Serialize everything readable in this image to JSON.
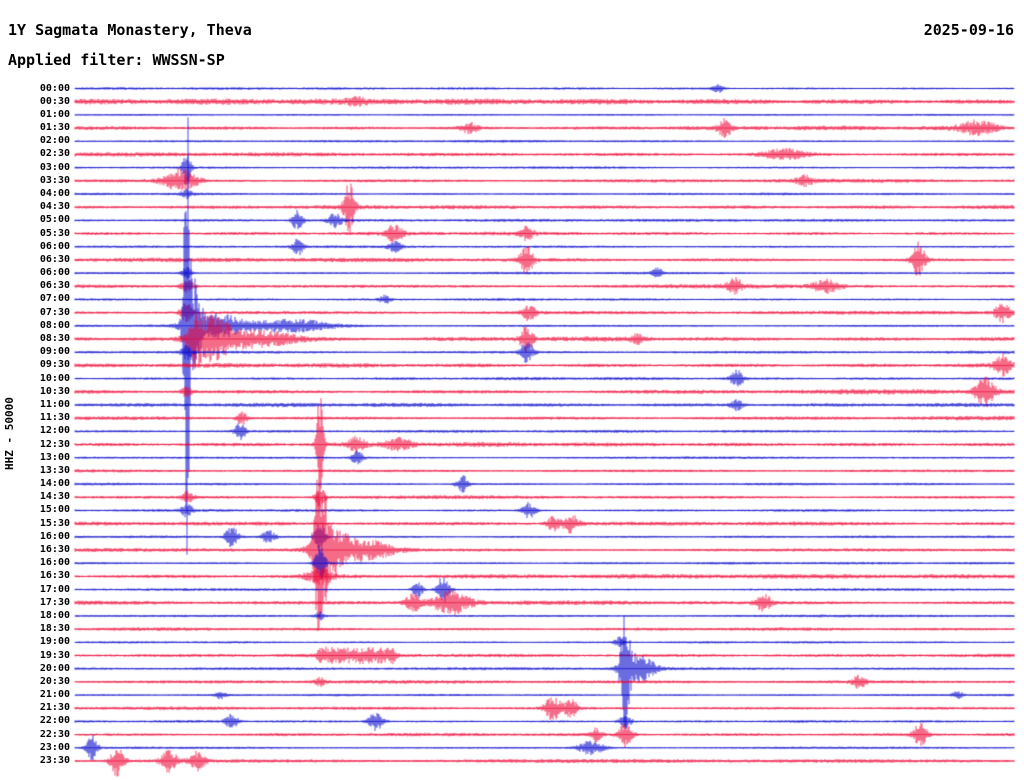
{
  "header": {
    "title": "1Y Sagmata Monastery, Theva",
    "date": "2025-09-16",
    "filter": "Applied filter: WWSSN-SP"
  },
  "axis": {
    "left_scale_label": "HHZ - 50000"
  },
  "chart_data": {
    "type": "line",
    "variant": "helicorder-day-plot",
    "station": "1Y Sagmata Monastery, Theva",
    "date": "2025-09-16",
    "filter": "WWSSN-SP",
    "channel_scale": "HHZ - 50000",
    "minutes_per_row": 30,
    "row_labels": [
      "00:00",
      "00:30",
      "01:00",
      "01:30",
      "02:00",
      "02:30",
      "03:00",
      "03:30",
      "04:00",
      "04:30",
      "05:00",
      "05:30",
      "06:00",
      "06:30",
      "06:00",
      "06:30",
      "07:00",
      "07:30",
      "08:00",
      "08:30",
      "09:00",
      "09:30",
      "10:00",
      "10:30",
      "11:00",
      "11:30",
      "12:00",
      "12:30",
      "13:00",
      "13:30",
      "14:00",
      "14:30",
      "15:00",
      "15:30",
      "16:00",
      "16:30",
      "16:00",
      "16:30",
      "17:00",
      "17:30",
      "18:00",
      "18:30",
      "19:00",
      "19:30",
      "20:00",
      "20:30",
      "21:00",
      "21:30",
      "22:00",
      "22:30",
      "23:00",
      "23:30"
    ],
    "colors": {
      "even_rows": "#0000cc",
      "odd_rows": "#ee0033",
      "text": "#000000",
      "background": "#ffffff"
    },
    "row_noise": [
      1.0,
      2.0,
      0.9,
      1.5,
      0.9,
      1.4,
      1.0,
      1.5,
      1.0,
      1.4,
      1.0,
      1.5,
      1.0,
      1.6,
      1.0,
      1.6,
      1.0,
      1.5,
      1.1,
      1.8,
      1.2,
      1.8,
      1.2,
      1.8,
      1.4,
      1.6,
      1.1,
      1.5,
      1.0,
      1.4,
      1.0,
      1.4,
      1.0,
      1.4,
      1.0,
      1.5,
      1.0,
      1.5,
      1.0,
      1.5,
      0.9,
      1.3,
      0.9,
      1.3,
      1.0,
      1.3,
      0.9,
      1.3,
      1.0,
      1.3,
      0.9,
      1.4
    ],
    "events_legend": "each event = [row_index, x_fraction_of_line, amplitude_px, envelope_width_fraction, optional 'b' = clipped box segment]",
    "events": [
      [
        0,
        0.685,
        4,
        0.004
      ],
      [
        1,
        0.3,
        3,
        0.006
      ],
      [
        3,
        0.42,
        5,
        0.006
      ],
      [
        3,
        0.692,
        8,
        0.005
      ],
      [
        3,
        0.962,
        7,
        0.014
      ],
      [
        5,
        0.755,
        5,
        0.016
      ],
      [
        6,
        0.119,
        20,
        0.003
      ],
      [
        7,
        0.112,
        11,
        0.012
      ],
      [
        7,
        0.777,
        5,
        0.006
      ],
      [
        8,
        0.119,
        5,
        0.004
      ],
      [
        9,
        0.292,
        24,
        0.004
      ],
      [
        10,
        0.237,
        10,
        0.004
      ],
      [
        10,
        0.277,
        7,
        0.005
      ],
      [
        11,
        0.34,
        8,
        0.006
      ],
      [
        11,
        0.481,
        6,
        0.005
      ],
      [
        12,
        0.237,
        9,
        0.004
      ],
      [
        12,
        0.341,
        5,
        0.005
      ],
      [
        13,
        0.481,
        14,
        0.005
      ],
      [
        13,
        0.898,
        17,
        0.005
      ],
      [
        14,
        0.119,
        6,
        0.004
      ],
      [
        14,
        0.62,
        5,
        0.004
      ],
      [
        15,
        0.12,
        7,
        0.005
      ],
      [
        15,
        0.703,
        7,
        0.006
      ],
      [
        15,
        0.8,
        6,
        0.01
      ],
      [
        16,
        0.33,
        4,
        0.004
      ],
      [
        17,
        0.119,
        9,
        0.005
      ],
      [
        17,
        0.484,
        8,
        0.005
      ],
      [
        17,
        0.988,
        9,
        0.006
      ],
      [
        18,
        0.119,
        230,
        0.0022
      ],
      [
        18,
        0.125,
        45,
        0.006
      ],
      [
        18,
        0.15,
        12,
        0.02
      ],
      [
        18,
        0.23,
        6,
        0.03
      ],
      [
        19,
        0.128,
        16,
        0.005
      ],
      [
        19,
        0.145,
        20,
        0.014
      ],
      [
        19,
        0.19,
        9,
        0.03
      ],
      [
        19,
        0.481,
        13,
        0.005
      ],
      [
        19,
        0.6,
        5,
        0.005
      ],
      [
        20,
        0.119,
        7,
        0.004
      ],
      [
        20,
        0.481,
        10,
        0.005
      ],
      [
        21,
        0.988,
        10,
        0.006
      ],
      [
        22,
        0.705,
        8,
        0.005
      ],
      [
        23,
        0.119,
        5,
        0.004
      ],
      [
        23,
        0.969,
        15,
        0.007
      ],
      [
        24,
        0.705,
        5,
        0.005
      ],
      [
        25,
        0.178,
        7,
        0.004
      ],
      [
        26,
        0.176,
        9,
        0.004
      ],
      [
        27,
        0.261,
        55,
        0.0025
      ],
      [
        27,
        0.3,
        7,
        0.006
      ],
      [
        27,
        0.345,
        6,
        0.01
      ],
      [
        28,
        0.301,
        6,
        0.005
      ],
      [
        30,
        0.413,
        8,
        0.005
      ],
      [
        31,
        0.12,
        6,
        0.004
      ],
      [
        31,
        0.261,
        10,
        0.004
      ],
      [
        32,
        0.119,
        7,
        0.004
      ],
      [
        32,
        0.484,
        8,
        0.005
      ],
      [
        33,
        0.509,
        7,
        0.005
      ],
      [
        33,
        0.528,
        9,
        0.006
      ],
      [
        34,
        0.167,
        10,
        0.005
      ],
      [
        34,
        0.206,
        7,
        0.005
      ],
      [
        34,
        0.261,
        16,
        0.004
      ],
      [
        35,
        0.261,
        85,
        0.004
      ],
      [
        35,
        0.272,
        28,
        0.012
      ],
      [
        35,
        0.31,
        10,
        0.02
      ],
      [
        36,
        0.261,
        18,
        0.004
      ],
      [
        37,
        0.26,
        8,
        0.01
      ],
      [
        38,
        0.365,
        8,
        0.004
      ],
      [
        38,
        0.392,
        13,
        0.005
      ],
      [
        39,
        0.36,
        9,
        0.006
      ],
      [
        39,
        0.401,
        12,
        0.014
      ],
      [
        39,
        0.733,
        9,
        0.006
      ],
      [
        40,
        0.261,
        4,
        0.004
      ],
      [
        42,
        0.58,
        5,
        0.004
      ],
      [
        43,
        0.3,
        7,
        0.038,
        "b"
      ],
      [
        44,
        0.586,
        60,
        0.0035
      ],
      [
        44,
        0.6,
        14,
        0.012
      ],
      [
        45,
        0.261,
        4,
        0.004
      ],
      [
        45,
        0.835,
        6,
        0.005
      ],
      [
        46,
        0.155,
        4,
        0.004
      ],
      [
        46,
        0.94,
        4,
        0.004
      ],
      [
        47,
        0.509,
        12,
        0.006
      ],
      [
        47,
        0.528,
        9,
        0.005
      ],
      [
        48,
        0.167,
        7,
        0.005
      ],
      [
        48,
        0.32,
        9,
        0.006
      ],
      [
        48,
        0.586,
        7,
        0.005
      ],
      [
        49,
        0.555,
        6,
        0.004
      ],
      [
        49,
        0.586,
        12,
        0.005
      ],
      [
        49,
        0.9,
        11,
        0.005
      ],
      [
        50,
        0.018,
        13,
        0.004
      ],
      [
        50,
        0.55,
        7,
        0.01
      ],
      [
        51,
        0.045,
        15,
        0.005
      ],
      [
        51,
        0.1,
        11,
        0.006
      ],
      [
        51,
        0.13,
        9,
        0.006
      ]
    ]
  }
}
